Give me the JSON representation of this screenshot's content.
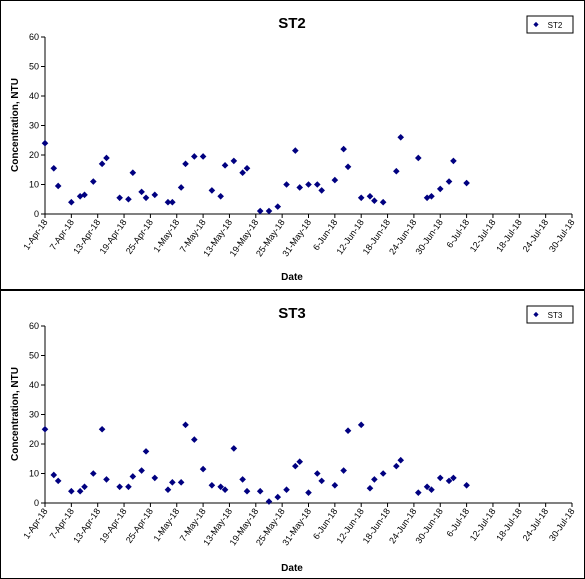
{
  "chart_data": [
    {
      "type": "scatter",
      "title": "ST2",
      "xlabel": "Date",
      "ylabel": "Concentration, NTU",
      "ylim": [
        0,
        60
      ],
      "yticks": [
        0,
        10,
        20,
        30,
        40,
        50,
        60
      ],
      "xlim": [
        "2018-04-01",
        "2018-07-30"
      ],
      "xtick_labels": [
        "1-Apr-18",
        "7-Apr-18",
        "13-Apr-18",
        "19-Apr-18",
        "25-Apr-18",
        "1-May-18",
        "7-May-18",
        "13-May-18",
        "19-May-18",
        "25-May-18",
        "31-May-18",
        "6-Jun-18",
        "12-Jun-18",
        "18-Jun-18",
        "24-Jun-18",
        "30-Jun-18",
        "6-Jul-18",
        "12-Jul-18",
        "18-Jul-18",
        "24-Jul-18",
        "30-Jul-18"
      ],
      "grid": false,
      "legend_position": "top-right",
      "series": [
        {
          "name": "ST2",
          "color": "#000080",
          "points": [
            {
              "x": "2018-04-01",
              "y": 24
            },
            {
              "x": "2018-04-03",
              "y": 15.5
            },
            {
              "x": "2018-04-04",
              "y": 9.5
            },
            {
              "x": "2018-04-07",
              "y": 4
            },
            {
              "x": "2018-04-09",
              "y": 6
            },
            {
              "x": "2018-04-10",
              "y": 6.5
            },
            {
              "x": "2018-04-12",
              "y": 11
            },
            {
              "x": "2018-04-14",
              "y": 17
            },
            {
              "x": "2018-04-15",
              "y": 19
            },
            {
              "x": "2018-04-18",
              "y": 5.5
            },
            {
              "x": "2018-04-20",
              "y": 5
            },
            {
              "x": "2018-04-21",
              "y": 14
            },
            {
              "x": "2018-04-23",
              "y": 7.5
            },
            {
              "x": "2018-04-24",
              "y": 5.5
            },
            {
              "x": "2018-04-26",
              "y": 6.5
            },
            {
              "x": "2018-04-29",
              "y": 4
            },
            {
              "x": "2018-04-30",
              "y": 4
            },
            {
              "x": "2018-05-02",
              "y": 9
            },
            {
              "x": "2018-05-03",
              "y": 17
            },
            {
              "x": "2018-05-05",
              "y": 19.5
            },
            {
              "x": "2018-05-07",
              "y": 19.5
            },
            {
              "x": "2018-05-09",
              "y": 8
            },
            {
              "x": "2018-05-11",
              "y": 6
            },
            {
              "x": "2018-05-12",
              "y": 16.5
            },
            {
              "x": "2018-05-14",
              "y": 18
            },
            {
              "x": "2018-05-16",
              "y": 14
            },
            {
              "x": "2018-05-17",
              "y": 15.5
            },
            {
              "x": "2018-05-20",
              "y": 1
            },
            {
              "x": "2018-05-22",
              "y": 1
            },
            {
              "x": "2018-05-24",
              "y": 2.5
            },
            {
              "x": "2018-05-26",
              "y": 10
            },
            {
              "x": "2018-05-28",
              "y": 21.5
            },
            {
              "x": "2018-05-29",
              "y": 9
            },
            {
              "x": "2018-05-31",
              "y": 10
            },
            {
              "x": "2018-06-02",
              "y": 10
            },
            {
              "x": "2018-06-03",
              "y": 8
            },
            {
              "x": "2018-06-06",
              "y": 11.5
            },
            {
              "x": "2018-06-08",
              "y": 22
            },
            {
              "x": "2018-06-09",
              "y": 16
            },
            {
              "x": "2018-06-12",
              "y": 5.5
            },
            {
              "x": "2018-06-14",
              "y": 6
            },
            {
              "x": "2018-06-15",
              "y": 4.5
            },
            {
              "x": "2018-06-17",
              "y": 4
            },
            {
              "x": "2018-06-20",
              "y": 14.5
            },
            {
              "x": "2018-06-21",
              "y": 26
            },
            {
              "x": "2018-06-25",
              "y": 19
            },
            {
              "x": "2018-06-27",
              "y": 5.5
            },
            {
              "x": "2018-06-28",
              "y": 6
            },
            {
              "x": "2018-06-30",
              "y": 8.5
            },
            {
              "x": "2018-07-02",
              "y": 11
            },
            {
              "x": "2018-07-03",
              "y": 18
            },
            {
              "x": "2018-07-06",
              "y": 10.5
            }
          ]
        }
      ]
    },
    {
      "type": "scatter",
      "title": "ST3",
      "xlabel": "Date",
      "ylabel": "Concentration, NTU",
      "ylim": [
        0,
        60
      ],
      "yticks": [
        0,
        10,
        20,
        30,
        40,
        50,
        60
      ],
      "xlim": [
        "2018-04-01",
        "2018-07-30"
      ],
      "xtick_labels": [
        "1-Apr-18",
        "7-Apr-18",
        "13-Apr-18",
        "19-Apr-18",
        "25-Apr-18",
        "1-May-18",
        "7-May-18",
        "13-May-18",
        "19-May-18",
        "25-May-18",
        "31-May-18",
        "6-Jun-18",
        "12-Jun-18",
        "18-Jun-18",
        "24-Jun-18",
        "30-Jun-18",
        "6-Jul-18",
        "12-Jul-18",
        "18-Jul-18",
        "24-Jul-18",
        "30-Jul-18"
      ],
      "grid": false,
      "legend_position": "top-right",
      "series": [
        {
          "name": "ST3",
          "color": "#000080",
          "points": [
            {
              "x": "2018-04-01",
              "y": 25
            },
            {
              "x": "2018-04-03",
              "y": 9.5
            },
            {
              "x": "2018-04-04",
              "y": 7.5
            },
            {
              "x": "2018-04-07",
              "y": 4
            },
            {
              "x": "2018-04-09",
              "y": 4
            },
            {
              "x": "2018-04-10",
              "y": 5.5
            },
            {
              "x": "2018-04-12",
              "y": 10
            },
            {
              "x": "2018-04-14",
              "y": 25
            },
            {
              "x": "2018-04-15",
              "y": 8
            },
            {
              "x": "2018-04-18",
              "y": 5.5
            },
            {
              "x": "2018-04-20",
              "y": 5.5
            },
            {
              "x": "2018-04-21",
              "y": 9
            },
            {
              "x": "2018-04-23",
              "y": 11
            },
            {
              "x": "2018-04-24",
              "y": 17.5
            },
            {
              "x": "2018-04-26",
              "y": 8.5
            },
            {
              "x": "2018-04-29",
              "y": 4.5
            },
            {
              "x": "2018-04-30",
              "y": 7
            },
            {
              "x": "2018-05-02",
              "y": 7
            },
            {
              "x": "2018-05-03",
              "y": 26.5
            },
            {
              "x": "2018-05-05",
              "y": 21.5
            },
            {
              "x": "2018-05-07",
              "y": 11.5
            },
            {
              "x": "2018-05-09",
              "y": 6
            },
            {
              "x": "2018-05-11",
              "y": 5.5
            },
            {
              "x": "2018-05-12",
              "y": 4.5
            },
            {
              "x": "2018-05-14",
              "y": 18.5
            },
            {
              "x": "2018-05-16",
              "y": 8
            },
            {
              "x": "2018-05-17",
              "y": 4
            },
            {
              "x": "2018-05-20",
              "y": 4
            },
            {
              "x": "2018-05-22",
              "y": 0.5
            },
            {
              "x": "2018-05-24",
              "y": 2
            },
            {
              "x": "2018-05-26",
              "y": 4.5
            },
            {
              "x": "2018-05-28",
              "y": 12.5
            },
            {
              "x": "2018-05-29",
              "y": 14
            },
            {
              "x": "2018-05-31",
              "y": 3.5
            },
            {
              "x": "2018-06-02",
              "y": 10
            },
            {
              "x": "2018-06-03",
              "y": 7.5
            },
            {
              "x": "2018-06-06",
              "y": 6
            },
            {
              "x": "2018-06-08",
              "y": 11
            },
            {
              "x": "2018-06-09",
              "y": 24.5
            },
            {
              "x": "2018-06-12",
              "y": 26.5
            },
            {
              "x": "2018-06-14",
              "y": 5
            },
            {
              "x": "2018-06-15",
              "y": 8
            },
            {
              "x": "2018-06-17",
              "y": 10
            },
            {
              "x": "2018-06-20",
              "y": 12.5
            },
            {
              "x": "2018-06-21",
              "y": 14.5
            },
            {
              "x": "2018-06-25",
              "y": 3.5
            },
            {
              "x": "2018-06-27",
              "y": 5.5
            },
            {
              "x": "2018-06-28",
              "y": 4.5
            },
            {
              "x": "2018-06-30",
              "y": 8.5
            },
            {
              "x": "2018-07-02",
              "y": 7.5
            },
            {
              "x": "2018-07-03",
              "y": 8.5
            },
            {
              "x": "2018-07-06",
              "y": 6
            }
          ]
        }
      ]
    }
  ]
}
